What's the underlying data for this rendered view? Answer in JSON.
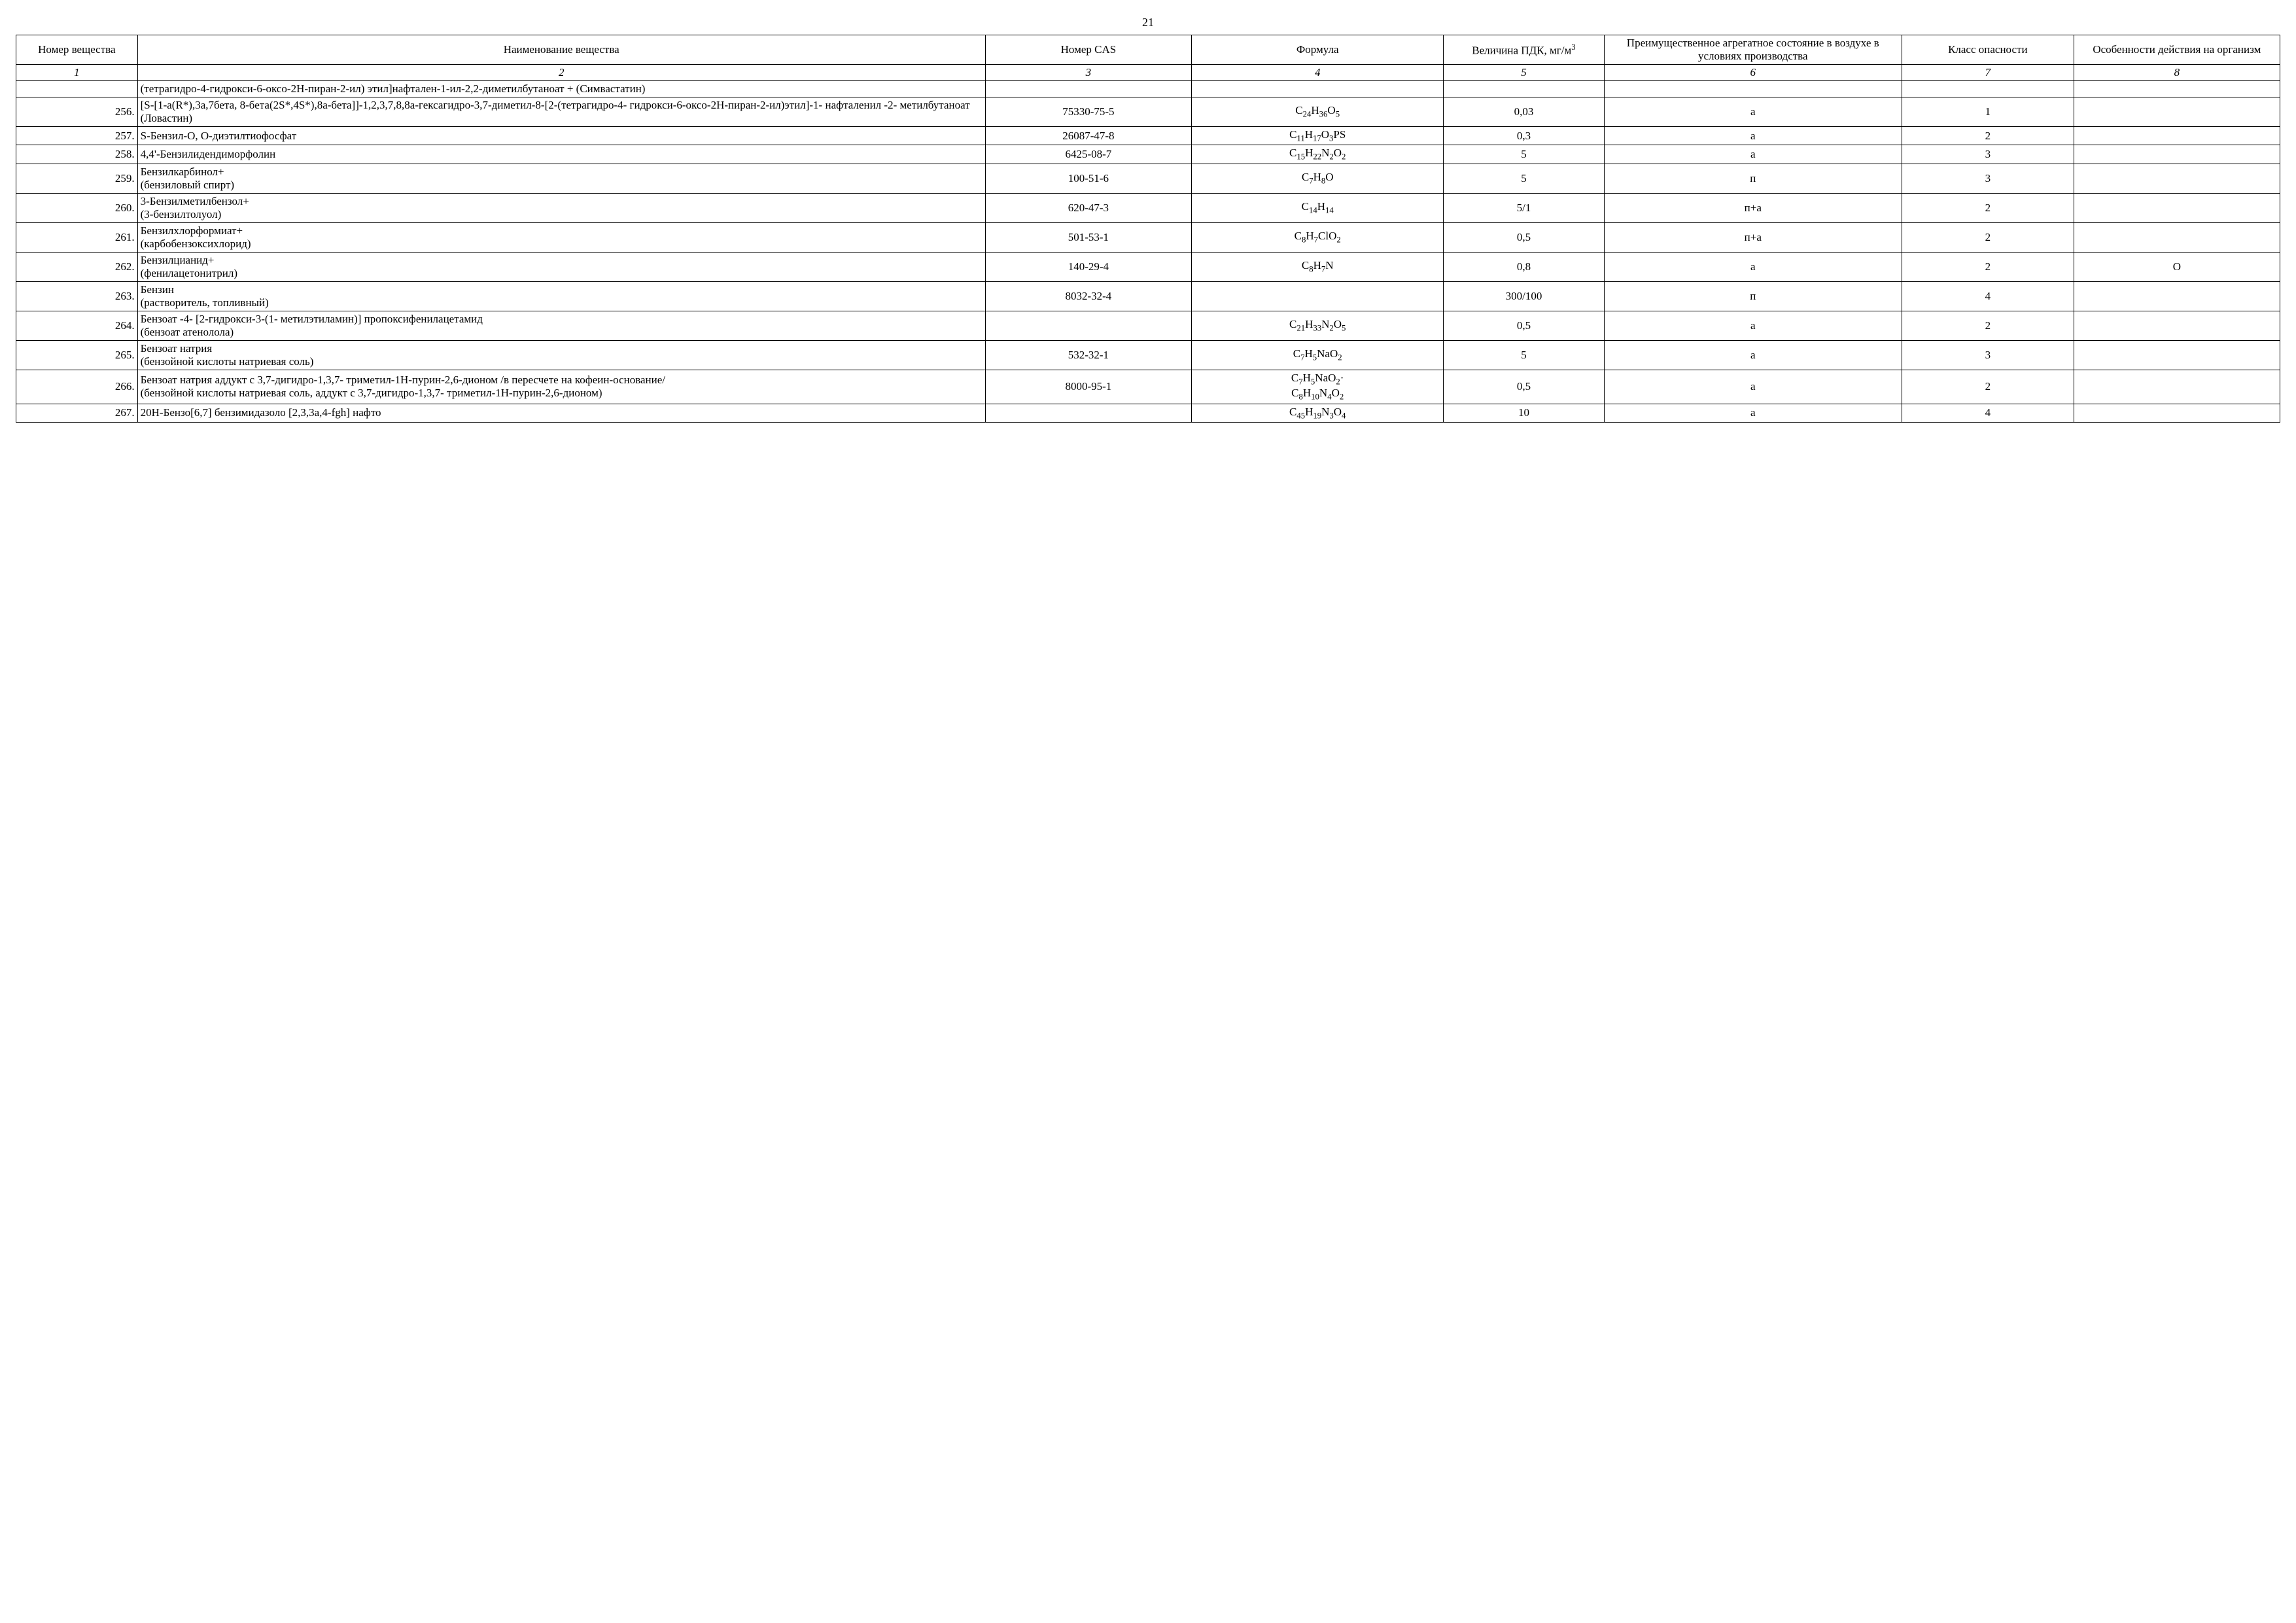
{
  "page_number": "21",
  "columns": [
    {
      "label": "Номер вещества",
      "sub": "1",
      "width": "5.3%"
    },
    {
      "label": "Наименование вещества",
      "sub": "2",
      "width": "37%"
    },
    {
      "label": "Номер CAS",
      "sub": "3",
      "width": "9%"
    },
    {
      "label": "Формула",
      "sub": "4",
      "width": "11%"
    },
    {
      "label_html": "Величина ПДК, мг/м<sup>3</sup>",
      "sub": "5",
      "width": "7%"
    },
    {
      "label": "Преимущественное агрегатное состояние в воздухе в условиях производства",
      "sub": "6",
      "width": "13%"
    },
    {
      "label": "Класс опасности",
      "sub": "7",
      "width": "7.5%"
    },
    {
      "label": "Особенности действия на организм",
      "sub": "8",
      "width": "9%"
    }
  ],
  "rows": [
    {
      "num": "",
      "name": "(тетрагидро-4-гидрокси-6-оксо-2H-пиран-2-ил) этил]нафтален-1-ил-2,2-диметилбутаноат + (Симвастатин)",
      "cas": "",
      "formula_html": "",
      "pdk": "",
      "state": "",
      "class": "",
      "notes": ""
    },
    {
      "num": "256.",
      "name": "[S-[1-a(R*),3a,7бета, 8-бета(2S*,4S*),8a-бета]]-1,2,3,7,8,8a-гексагидро-3,7-диметил-8-[2-(тетрагидро-4- гидрокси-6-оксо-2H-пиран-2-ил)этил]-1- нафталенил -2- метилбутаноат (Ловастин)",
      "cas": "75330-75-5",
      "formula_html": "C<sub>24</sub>H<sub>36</sub>O<sub>5</sub>",
      "pdk": "0,03",
      "state": "а",
      "class": "1",
      "notes": ""
    },
    {
      "num": "257.",
      "name": "S-Бензил-O, O-диэтилтиофосфат",
      "cas": "26087-47-8",
      "formula_html": "C<sub>11</sub>H<sub>17</sub>O<sub>3</sub>PS",
      "pdk": "0,3",
      "state": "а",
      "class": "2",
      "notes": ""
    },
    {
      "num": "258.",
      "name": "4,4'-Бензилидендиморфолин",
      "cas": "6425-08-7",
      "formula_html": "C<sub>15</sub>H<sub>22</sub>N<sub>2</sub>O<sub>2</sub>",
      "pdk": "5",
      "state": "а",
      "class": "3",
      "notes": ""
    },
    {
      "num": "259.",
      "name": "Бензилкарбинол+\n(бензиловый спирт)",
      "cas": "100-51-6",
      "formula_html": "C<sub>7</sub>H<sub>8</sub>O",
      "pdk": "5",
      "state": "п",
      "class": "3",
      "notes": ""
    },
    {
      "num": "260.",
      "name": "3-Бензилметилбензол+\n(3-бензилтолуол)",
      "cas": "620-47-3",
      "formula_html": "C<sub>14</sub>H<sub>14</sub>",
      "pdk": "5/1",
      "state": "п+а",
      "class": "2",
      "notes": ""
    },
    {
      "num": "261.",
      "name": "Бензилхлорформиат+\n(карбобензоксихлорид)",
      "cas": "501-53-1",
      "formula_html": "C<sub>8</sub>H<sub>7</sub>ClO<sub>2</sub>",
      "pdk": "0,5",
      "state": "п+а",
      "class": "2",
      "notes": ""
    },
    {
      "num": "262.",
      "name": "Бензилцианид+\n(фенилацетонитрил)",
      "cas": "140-29-4",
      "formula_html": "C<sub>8</sub>H<sub>7</sub>N",
      "pdk": "0,8",
      "state": "а",
      "class": "2",
      "notes": "О"
    },
    {
      "num": "263.",
      "name": "Бензин\n(растворитель, топливный)",
      "cas": "8032-32-4",
      "formula_html": "",
      "pdk": "300/100",
      "state": "п",
      "class": "4",
      "notes": ""
    },
    {
      "num": "264.",
      "name": "Бензоат -4- [2-гидрокси-3-(1- метилэтиламин)] пропоксифенилацетамид\n(бензоат атенолола)",
      "cas": "",
      "formula_html": "C<sub>21</sub>H<sub>33</sub>N<sub>2</sub>O<sub>5</sub>",
      "pdk": "0,5",
      "state": "а",
      "class": "2",
      "notes": ""
    },
    {
      "num": "265.",
      "name": "Бензоат натрия\n(бензойной кислоты натриевая соль)",
      "cas": "532-32-1",
      "formula_html": "C<sub>7</sub>H<sub>5</sub>NaO<sub>2</sub>",
      "pdk": "5",
      "state": "а",
      "class": "3",
      "notes": ""
    },
    {
      "num": "266.",
      "name": "Бензоат натрия аддукт с 3,7-дигидро-1,3,7- триметил-1H-пурин-2,6-дионом /в пересчете на кофеин-основание/\n(бензойной кислоты натриевая соль, аддукт с 3,7-дигидро-1,3,7- триметил-1H-пурин-2,6-дионом)",
      "cas": "8000-95-1",
      "formula_html": "C<sub>7</sub>H<sub>5</sub>NaO<sub>2</sub>·<br>C<sub>8</sub>H<sub>10</sub>N<sub>4</sub>O<sub>2</sub>",
      "pdk": "0,5",
      "state": "а",
      "class": "2",
      "notes": ""
    },
    {
      "num": "267.",
      "name": "20H-Бензо[6,7] бензимидазоло [2,3,3a,4-fgh] нафто",
      "cas": "",
      "formula_html": "C<sub>45</sub>H<sub>19</sub>N<sub>3</sub>O<sub>4</sub>",
      "pdk": "10",
      "state": "а",
      "class": "4",
      "notes": ""
    }
  ],
  "style": {
    "font_family": "Times New Roman",
    "font_size_pt": 12,
    "border_color": "#000000",
    "background_color": "#ffffff",
    "text_color": "#000000"
  }
}
